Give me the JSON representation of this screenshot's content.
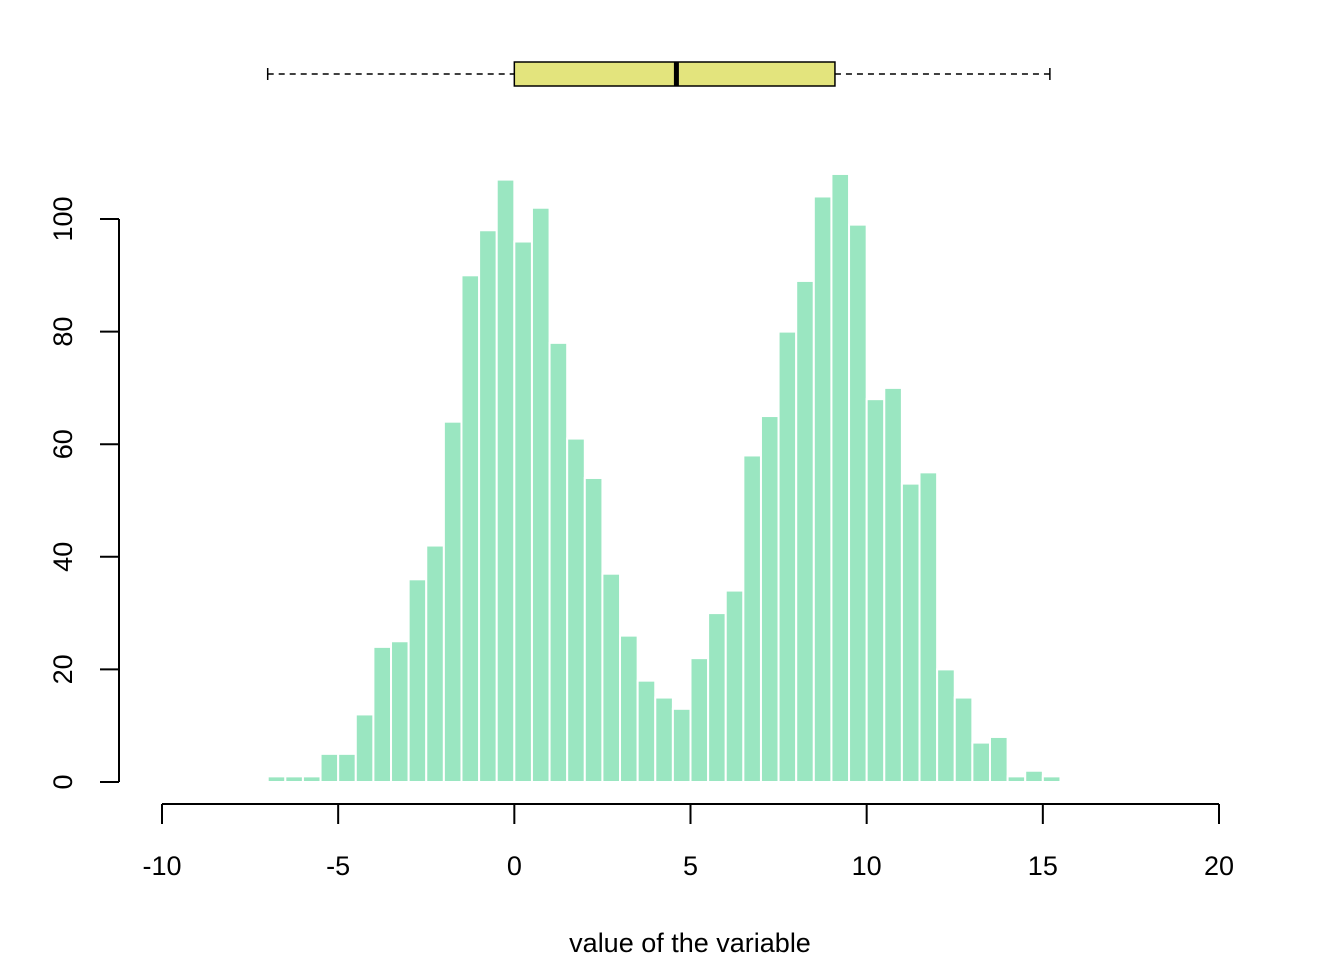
{
  "chart_data": [
    {
      "type": "boxplot",
      "orientation": "horizontal",
      "whisker_low": -7.0,
      "q1": 0.0,
      "median": 4.6,
      "q3": 9.1,
      "whisker_high": 15.2,
      "box_color": "#e3e47d",
      "whisker_style": "dashed"
    },
    {
      "type": "bar",
      "subtype": "histogram",
      "bin_width": 0.5,
      "x_start": -7.0,
      "values": [
        1,
        1,
        1,
        5,
        5,
        12,
        24,
        25,
        36,
        42,
        64,
        90,
        98,
        107,
        96,
        102,
        78,
        61,
        54,
        37,
        26,
        18,
        15,
        13,
        22,
        30,
        34,
        58,
        65,
        80,
        89,
        104,
        108,
        99,
        68,
        70,
        53,
        55,
        20,
        15,
        7,
        8,
        1,
        2,
        1
      ],
      "xlabel": "value of the variable",
      "ylabel": "",
      "xlim": [
        -10,
        20
      ],
      "ylim": [
        0,
        100
      ],
      "x_ticks": [
        "-10",
        "-5",
        "0",
        "5",
        "10",
        "15",
        "20"
      ],
      "y_ticks": [
        "0",
        "20",
        "40",
        "60",
        "80",
        "100"
      ],
      "bar_color": "#9ae6c1",
      "grid": false
    }
  ]
}
